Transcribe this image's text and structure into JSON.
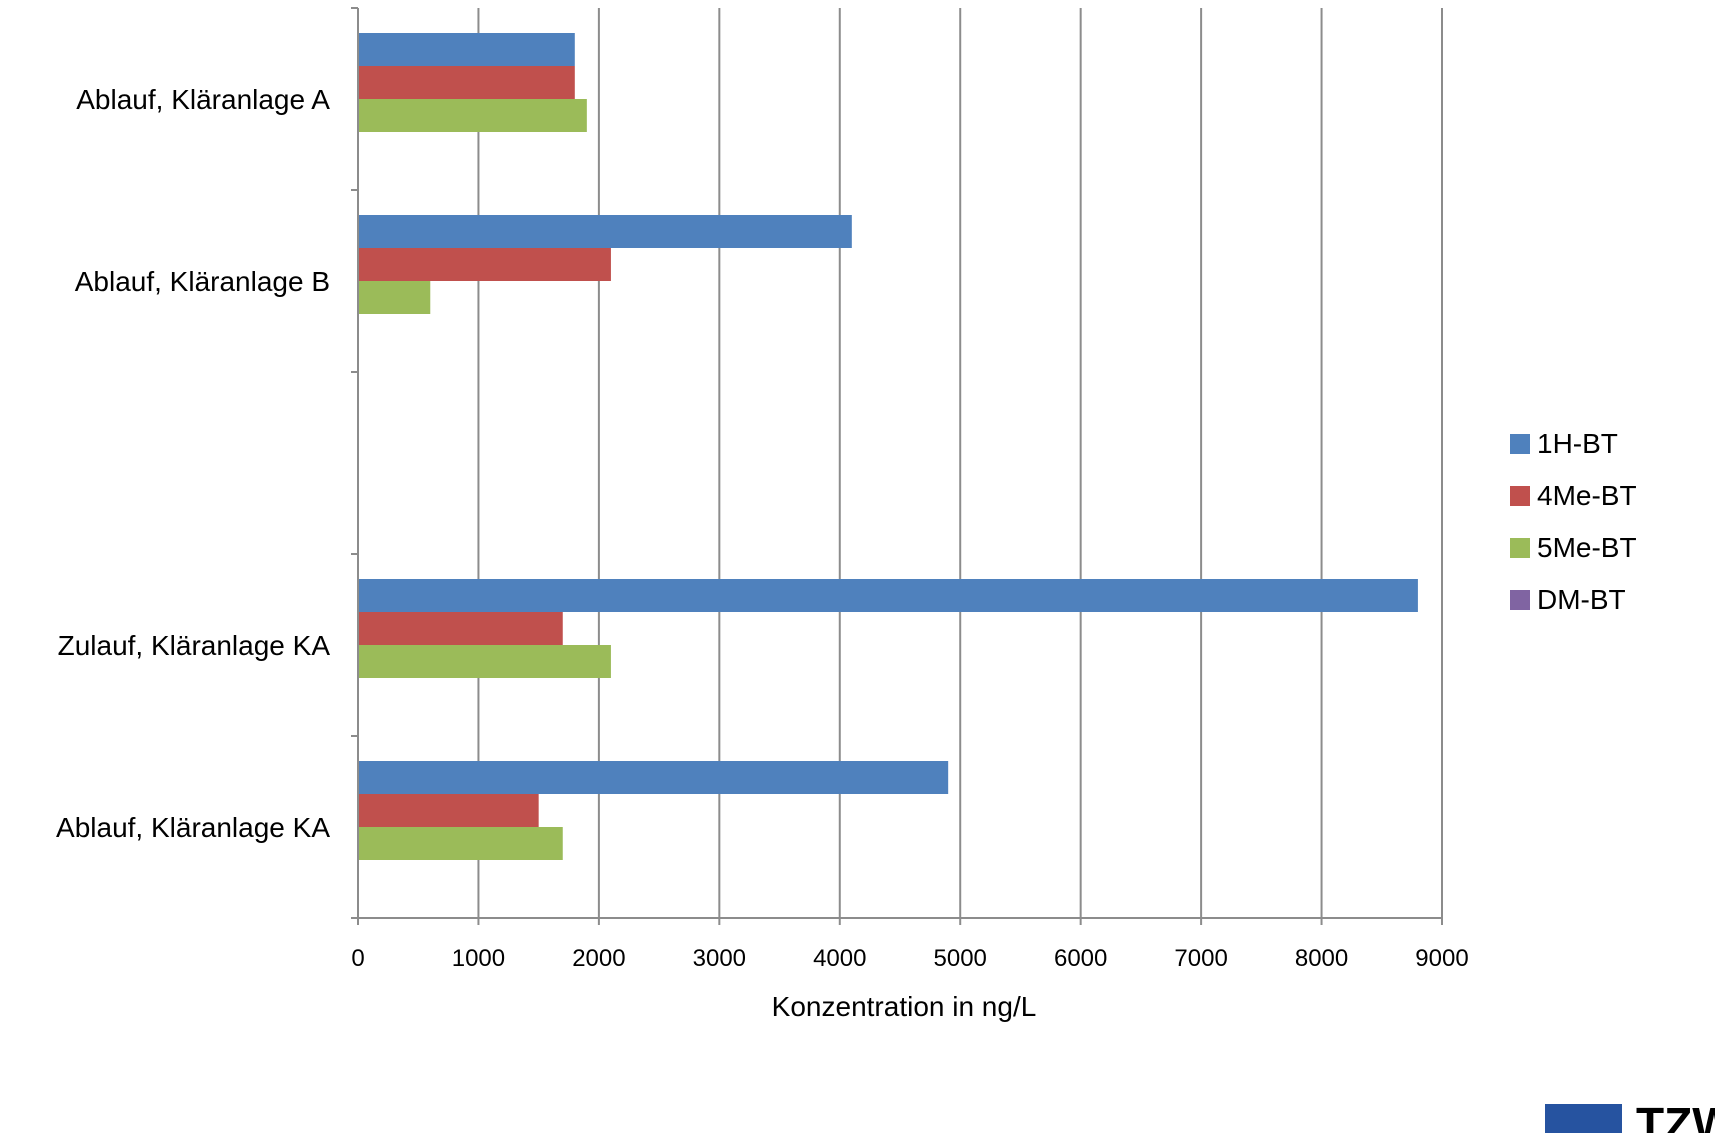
{
  "chart_data": {
    "type": "bar",
    "orientation": "horizontal",
    "categories": [
      "Ablauf, Kläranlage A",
      "Ablauf, Kläranlage B",
      "",
      "Zulauf, Kläranlage KA",
      "Ablauf, Kläranlage KA"
    ],
    "series": [
      {
        "name": "1H-BT",
        "color": "#4F81BD",
        "values": [
          1800,
          4100,
          null,
          8800,
          4900
        ]
      },
      {
        "name": "4Me-BT",
        "color": "#C0504D",
        "values": [
          1800,
          2100,
          null,
          1700,
          1500
        ]
      },
      {
        "name": "5Me-BT",
        "color": "#9BBB59",
        "values": [
          1900,
          600,
          null,
          2100,
          1700
        ]
      },
      {
        "name": "DM-BT",
        "color": "#8064A2",
        "values": [
          null,
          null,
          null,
          null,
          null
        ]
      }
    ],
    "xlabel": "Konzentration in ng/L",
    "ylabel": "",
    "xlim": [
      0,
      9000
    ],
    "xticks": [
      0,
      1000,
      2000,
      3000,
      4000,
      5000,
      6000,
      7000,
      8000,
      9000
    ],
    "grid": "vertical",
    "legend_position": "right"
  },
  "logo": {
    "text": "TZW",
    "color": "#2653A0"
  }
}
